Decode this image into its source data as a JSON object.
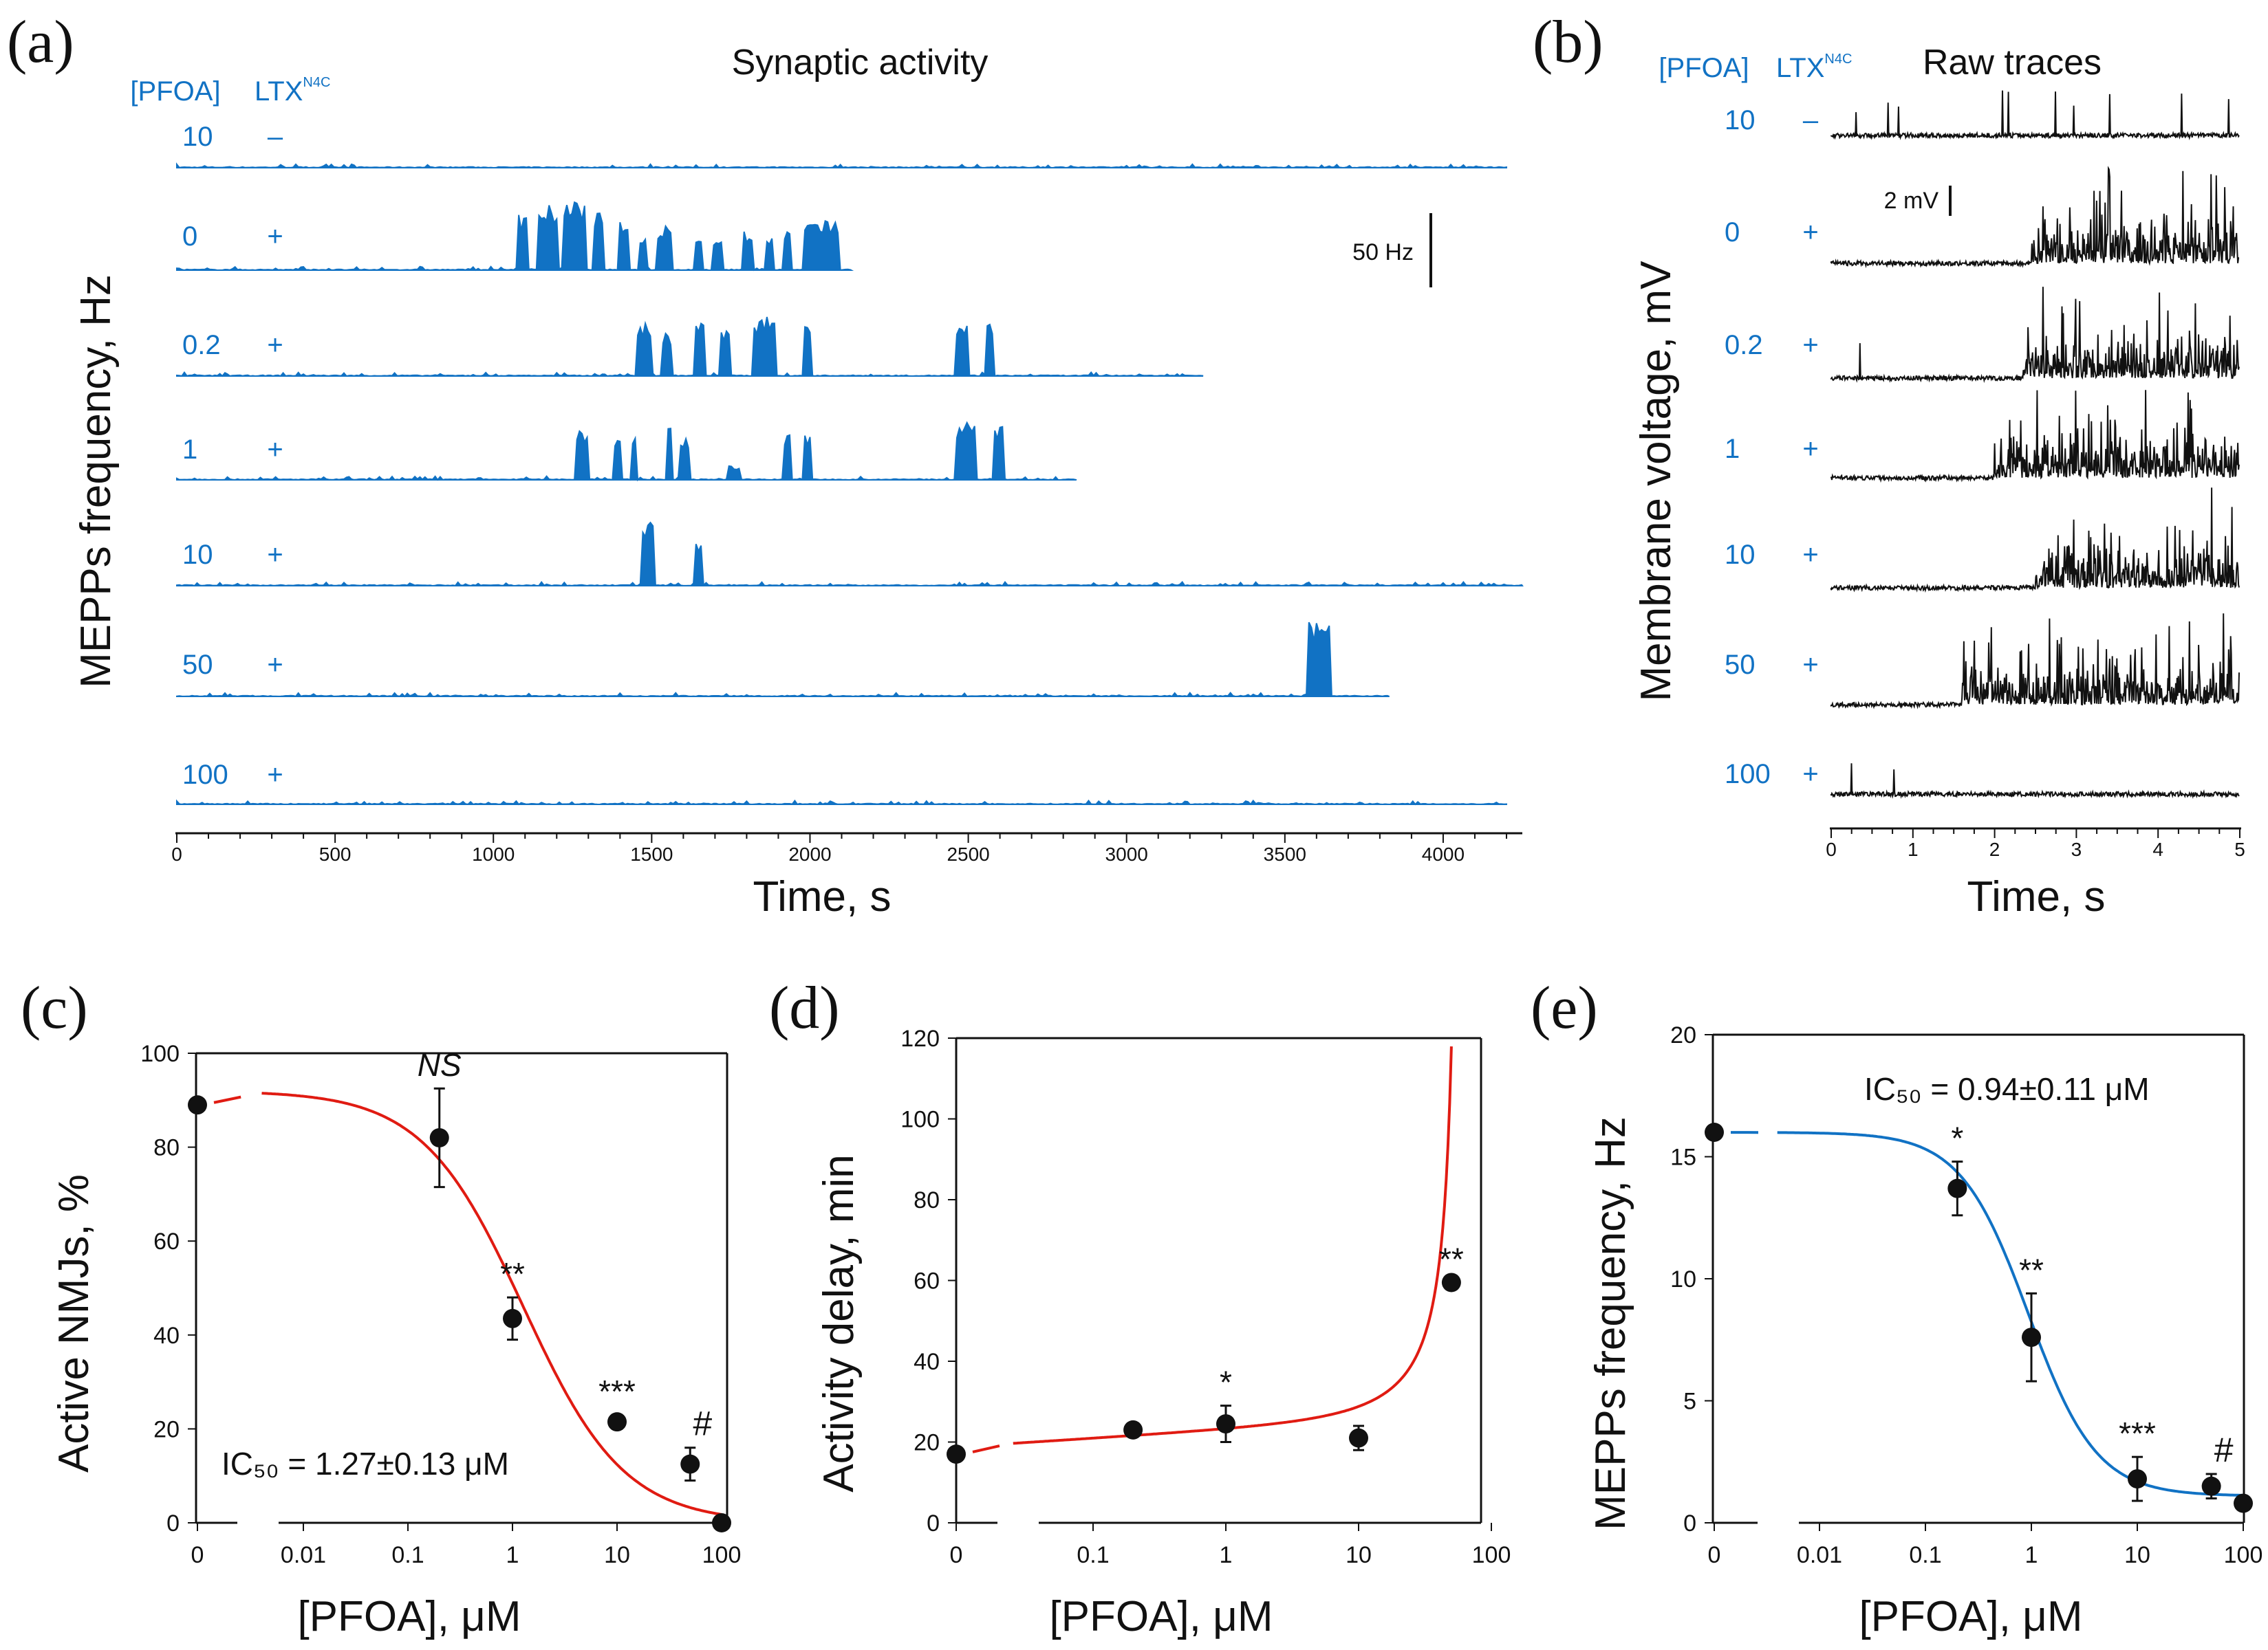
{
  "colors": {
    "blue": "#1172c4",
    "black": "#111111",
    "red": "#e01b12"
  },
  "chart_data": [
    {
      "panel": "(a)",
      "type": "area",
      "title": "Synaptic activity",
      "ylabel": "MEPPs frequency, Hz",
      "xlabel": "Time, s",
      "header_pfoa": "[PFOA]",
      "header_ltx": "LTX",
      "header_ltx_sup": "N4C",
      "x_ticks": [
        0,
        500,
        1000,
        1500,
        2000,
        2500,
        3000,
        3500,
        4000
      ],
      "xlim": [
        0,
        4250
      ],
      "scalebar": "50 Hz",
      "scalebar_hz": 50,
      "traces": [
        {
          "pfoa": "10",
          "ltx": "–",
          "end": 4200,
          "bursts": []
        },
        {
          "pfoa": "0",
          "ltx": "+",
          "end": 2130,
          "bursts": [
            [
              1080,
              1110,
              38
            ],
            [
              1140,
              1200,
              44
            ],
            [
              1220,
              1290,
              46
            ],
            [
              1320,
              1350,
              42
            ],
            [
              1400,
              1430,
              36
            ],
            [
              1460,
              1480,
              24
            ],
            [
              1520,
              1560,
              30
            ],
            [
              1640,
              1660,
              25
            ],
            [
              1690,
              1720,
              24
            ],
            [
              1790,
              1820,
              26
            ],
            [
              1860,
              1880,
              24
            ],
            [
              1920,
              1940,
              26
            ],
            [
              1980,
              2090,
              34
            ]
          ]
        },
        {
          "pfoa": "0.2",
          "ltx": "+",
          "end": 3240,
          "bursts": [
            [
              1450,
              1500,
              38
            ],
            [
              1530,
              1560,
              30
            ],
            [
              1640,
              1670,
              36
            ],
            [
              1720,
              1750,
              33
            ],
            [
              1820,
              1890,
              40
            ],
            [
              1980,
              2000,
              34
            ],
            [
              2460,
              2500,
              34
            ],
            [
              2560,
              2580,
              36
            ]
          ]
        },
        {
          "pfoa": "1",
          "ltx": "+",
          "end": 2840,
          "bursts": [
            [
              1260,
              1300,
              35
            ],
            [
              1380,
              1400,
              28
            ],
            [
              1440,
              1450,
              33
            ],
            [
              1550,
              1560,
              35
            ],
            [
              1590,
              1620,
              28
            ],
            [
              1740,
              1780,
              10
            ],
            [
              1920,
              1940,
              32
            ],
            [
              1980,
              2000,
              30
            ],
            [
              2460,
              2520,
              40
            ],
            [
              2580,
              2610,
              36
            ]
          ]
        },
        {
          "pfoa": "10",
          "ltx": "+",
          "end": 4250,
          "bursts": [
            [
              1470,
              1510,
              43
            ],
            [
              1640,
              1660,
              32
            ]
          ]
        },
        {
          "pfoa": "50",
          "ltx": "+",
          "end": 3830,
          "bursts": [
            [
              3570,
              3640,
              50
            ]
          ]
        },
        {
          "pfoa": "100",
          "ltx": "+",
          "end": 4200,
          "bursts": []
        }
      ]
    },
    {
      "panel": "(b)",
      "type": "line",
      "title": "Raw traces",
      "ylabel": "Membrane voltage, mV",
      "xlabel": "Time, s",
      "header_pfoa": "[PFOA]",
      "header_ltx": "LTX",
      "header_ltx_sup": "N4C",
      "x_ticks": [
        0,
        1,
        2,
        3,
        4,
        5
      ],
      "xlim": [
        0,
        5
      ],
      "scalebar": "2 mV",
      "scalebar_mv": 2,
      "traces": [
        {
          "pfoa": "10",
          "ltx": "–",
          "onset": null
        },
        {
          "pfoa": "0",
          "ltx": "+",
          "onset": 2.45
        },
        {
          "pfoa": "0.2",
          "ltx": "+",
          "onset": 2.35
        },
        {
          "pfoa": "1",
          "ltx": "+",
          "onset": 2.0
        },
        {
          "pfoa": "10",
          "ltx": "+",
          "onset": 2.5
        },
        {
          "pfoa": "50",
          "ltx": "+",
          "onset": 1.6
        },
        {
          "pfoa": "100",
          "ltx": "+",
          "onset": null
        }
      ]
    },
    {
      "panel": "(c)",
      "type": "scatter",
      "xscale": "log",
      "ylabel": "Active NMJs, %",
      "xlabel": "[PFOA], μM",
      "ylim": [
        0,
        100
      ],
      "y_ticks": [
        0,
        20,
        40,
        60,
        80,
        100
      ],
      "x_tick_labels": [
        "0",
        "0.01",
        "0.1",
        "1",
        "10",
        "100"
      ],
      "points": [
        {
          "x": 0,
          "y": 89,
          "err": 0
        },
        {
          "x": 0.2,
          "y": 82,
          "err": 10.5,
          "label": "NS"
        },
        {
          "x": 1,
          "y": 43.5,
          "err": 4.5,
          "label": "**"
        },
        {
          "x": 10,
          "y": 21.5,
          "err": 1.5,
          "label": "***"
        },
        {
          "x": 50,
          "y": 12.5,
          "err": 3.5,
          "label": "#"
        },
        {
          "x": 100,
          "y": 0,
          "err": 0
        }
      ],
      "fit": {
        "color": "red",
        "top": 92,
        "ic50": 1.27,
        "hill": 0.9
      },
      "annotation": "IC₅₀ = 1.27±0.13 μM"
    },
    {
      "panel": "(d)",
      "type": "scatter",
      "xscale": "log",
      "ylabel": "Activity delay, min",
      "xlabel": "[PFOA], μM",
      "ylim": [
        0,
        120
      ],
      "y_ticks": [
        0,
        20,
        40,
        60,
        80,
        100,
        120
      ],
      "x_tick_labels": [
        "0",
        "0.1",
        "1",
        "10",
        "100"
      ],
      "points": [
        {
          "x": 0,
          "y": 17,
          "err": 0
        },
        {
          "x": 0.2,
          "y": 23,
          "err": 0
        },
        {
          "x": 1,
          "y": 24.5,
          "err": 4.5,
          "label": "*"
        },
        {
          "x": 10,
          "y": 21,
          "err": 3
        },
        {
          "x": 50,
          "y": 59.5,
          "err": 0,
          "label": "**"
        }
      ],
      "fit": {
        "color": "red"
      }
    },
    {
      "panel": "(e)",
      "type": "scatter",
      "xscale": "log",
      "ylabel": "MEPPs frequency, Hz",
      "xlabel": "[PFOA], μM",
      "ylim": [
        0,
        20
      ],
      "y_ticks": [
        0,
        5,
        10,
        15,
        20
      ],
      "x_tick_labels": [
        "0",
        "0.01",
        "0.1",
        "1",
        "10",
        "100"
      ],
      "points": [
        {
          "x": 0,
          "y": 16,
          "err": 0
        },
        {
          "x": 0.2,
          "y": 13.7,
          "err": 1.1,
          "label": "*"
        },
        {
          "x": 1,
          "y": 7.6,
          "err": 1.8,
          "label": "**"
        },
        {
          "x": 10,
          "y": 1.8,
          "err": 0.9,
          "label": "***"
        },
        {
          "x": 50,
          "y": 1.5,
          "err": 0.5,
          "label": "#"
        },
        {
          "x": 100,
          "y": 0.8,
          "err": 0
        }
      ],
      "fit": {
        "color": "blue",
        "top": 16,
        "bottom": 1.1,
        "ic50": 0.94,
        "hill": 1.35
      },
      "annotation": "IC₅₀ = 0.94±0.11 μM"
    }
  ]
}
